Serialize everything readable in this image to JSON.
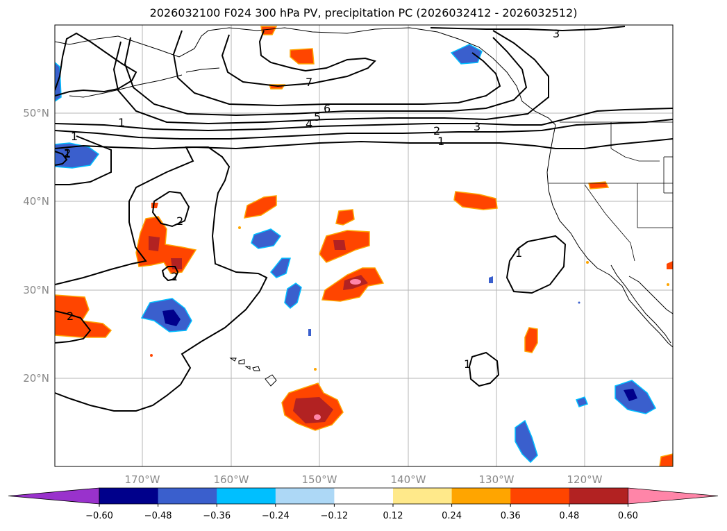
{
  "title": "2026032100 F024 300 hPa PV, precipitation PC (2026032412 - 2026032512)",
  "map": {
    "lat_labels": [
      "50°N",
      "40°N",
      "30°N",
      "20°N"
    ],
    "lon_labels": [
      "170°W",
      "160°W",
      "150°W",
      "140°W",
      "130°W",
      "120°W"
    ],
    "pv_contour_labels": [
      "1",
      "1",
      "1",
      "1",
      "1",
      "1",
      "2",
      "2",
      "2",
      "2",
      "2",
      "3",
      "3",
      "4",
      "5",
      "6",
      "7"
    ]
  },
  "colorbar": {
    "ticks": [
      "−0.60",
      "−0.48",
      "−0.36",
      "−0.24",
      "−0.12",
      "0.12",
      "0.24",
      "0.36",
      "0.48",
      "0.60"
    ],
    "colors": [
      "#9932cc",
      "#00008b",
      "#3a5fcd",
      "#00bfff",
      "#add8f6",
      "#ffffff",
      "#ffe98a",
      "#ffa500",
      "#ff4500",
      "#b22222",
      "#ff85a8"
    ]
  }
}
